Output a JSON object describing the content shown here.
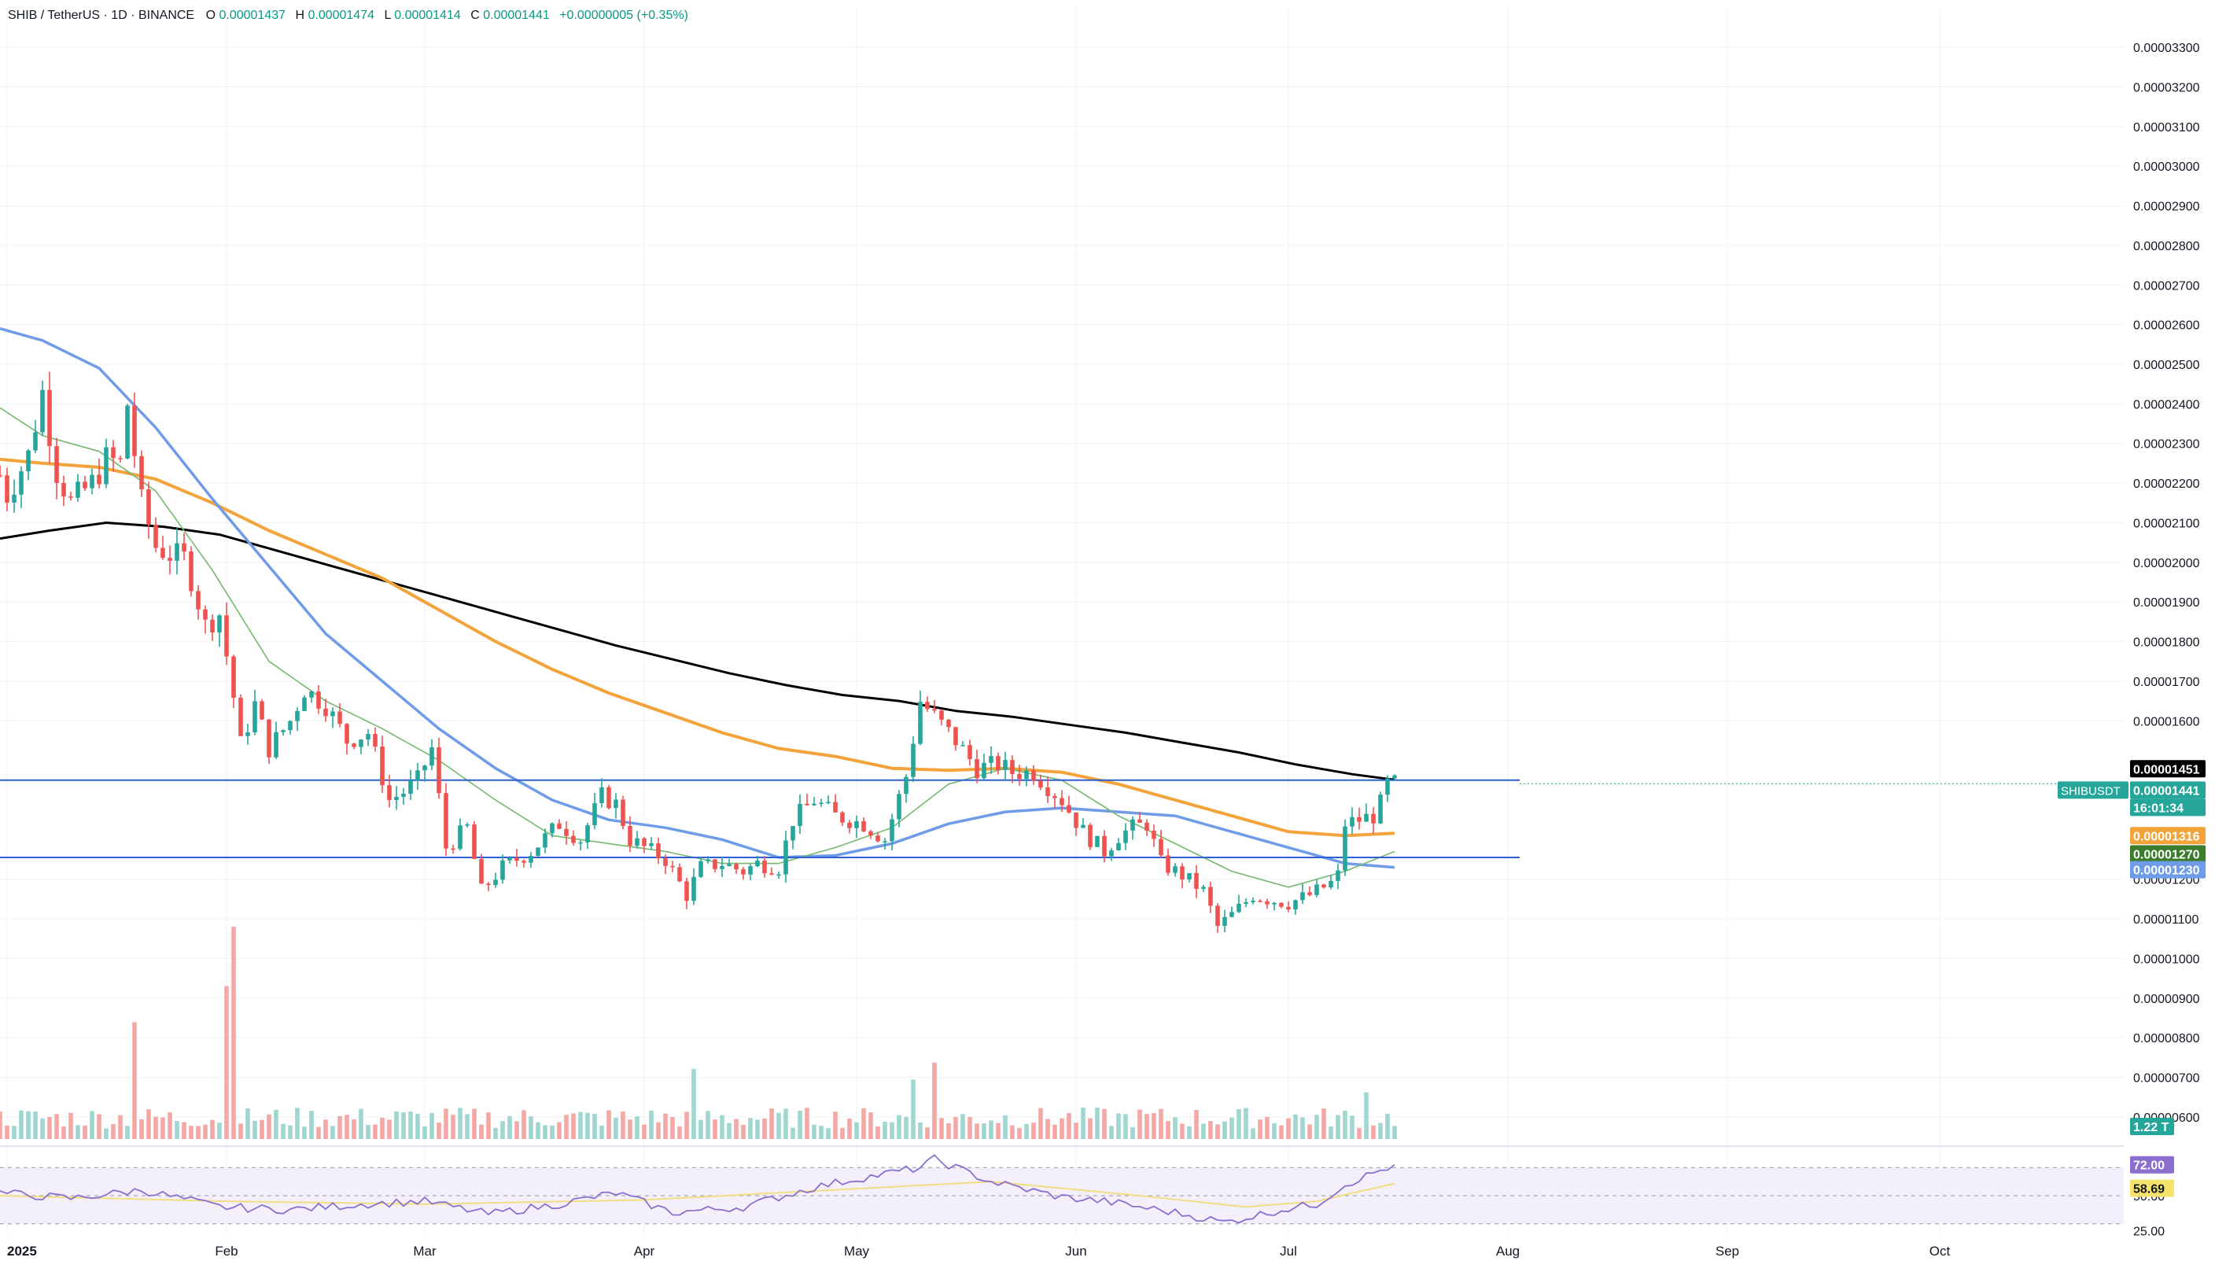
{
  "header": {
    "symbol": "SHIB / TetherUS · 1D · BINANCE",
    "o_label": "O",
    "o_value": "0.00001437",
    "h_label": "H",
    "h_value": "0.00001474",
    "l_label": "L",
    "l_value": "0.00001414",
    "c_label": "C",
    "c_value": "0.00001441",
    "change": "+0.00000005 (+0.35%)"
  },
  "colors": {
    "up": "#26a69a",
    "down": "#ef5350",
    "vol_up": "#9fd6d0",
    "vol_down": "#f4a8a6",
    "ma200": "#000000",
    "ma100": "#f2a33a",
    "ma50": "#6f9ce8",
    "ma20": "#75b96f",
    "hline": "#2f5fd6",
    "rsi": "#8b6fcf",
    "rsi_ma": "#f2dd82",
    "grid": "#f0f1f3",
    "axis_text": "#131722",
    "bg": "#ffffff"
  },
  "chart_data": {
    "type": "candlestick",
    "title": "SHIB / TetherUS · 1D · BINANCE",
    "x_range": [
      "2024-12-31",
      "2025-10-27"
    ],
    "y_range": [
      5.6e-06,
      3.34e-05
    ],
    "y_ticks": [
      "0.00003300",
      "0.00003200",
      "0.00003100",
      "0.00003000",
      "0.00002900",
      "0.00002800",
      "0.00002700",
      "0.00002600",
      "0.00002500",
      "0.00002400",
      "0.00002300",
      "0.00002200",
      "0.00002100",
      "0.00002000",
      "0.00001900",
      "0.00001800",
      "0.00001700",
      "0.00001600",
      "0.00001200",
      "0.00001100",
      "0.00001000",
      "0.00000900",
      "0.00000800",
      "0.00000700",
      "0.00000600"
    ],
    "x_ticks": [
      {
        "label": "2025",
        "date": "2025-01-01"
      },
      {
        "label": "Feb",
        "date": "2025-02-01"
      },
      {
        "label": "Mar",
        "date": "2025-03-01"
      },
      {
        "label": "Apr",
        "date": "2025-04-01"
      },
      {
        "label": "May",
        "date": "2025-05-01"
      },
      {
        "label": "Jun",
        "date": "2025-06-01"
      },
      {
        "label": "Jul",
        "date": "2025-07-01"
      },
      {
        "label": "Aug",
        "date": "2025-08-01"
      },
      {
        "label": "Sep",
        "date": "2025-09-01"
      },
      {
        "label": "Oct",
        "date": "2025-10-01"
      }
    ],
    "price_path": [
      [
        "2024-12-31",
        2.22e-05
      ],
      [
        "2025-01-01",
        2.17e-05
      ],
      [
        "2025-01-04",
        2.27e-05
      ],
      [
        "2025-01-06",
        2.43e-05
      ],
      [
        "2025-01-08",
        2.23e-05
      ],
      [
        "2025-01-10",
        2.15e-05
      ],
      [
        "2025-01-13",
        2.2e-05
      ],
      [
        "2025-01-15",
        2.26e-05
      ],
      [
        "2025-01-17",
        2.25e-05
      ],
      [
        "2025-01-18",
        2.4e-05
      ],
      [
        "2025-01-20",
        2.15e-05
      ],
      [
        "2025-01-22",
        2.04e-05
      ],
      [
        "2025-01-24",
        2.02e-05
      ],
      [
        "2025-01-26",
        2.01e-05
      ],
      [
        "2025-01-27",
        1.96e-05
      ],
      [
        "2025-01-29",
        1.84e-05
      ],
      [
        "2025-01-31",
        1.87e-05
      ],
      [
        "2025-02-02",
        1.66e-05
      ],
      [
        "2025-02-03",
        1.54e-05
      ],
      [
        "2025-02-05",
        1.64e-05
      ],
      [
        "2025-02-07",
        1.53e-05
      ],
      [
        "2025-02-10",
        1.6e-05
      ],
      [
        "2025-02-12",
        1.68e-05
      ],
      [
        "2025-02-15",
        1.64e-05
      ],
      [
        "2025-02-18",
        1.55e-05
      ],
      [
        "2025-02-21",
        1.57e-05
      ],
      [
        "2025-02-24",
        1.4e-05
      ],
      [
        "2025-02-26",
        1.42e-05
      ],
      [
        "2025-02-28",
        1.45e-05
      ],
      [
        "2025-03-02",
        1.53e-05
      ],
      [
        "2025-03-04",
        1.28e-05
      ],
      [
        "2025-03-07",
        1.33e-05
      ],
      [
        "2025-03-09",
        1.17e-05
      ],
      [
        "2025-03-12",
        1.23e-05
      ],
      [
        "2025-03-16",
        1.27e-05
      ],
      [
        "2025-03-20",
        1.34e-05
      ],
      [
        "2025-03-23",
        1.3e-05
      ],
      [
        "2025-03-26",
        1.41e-05
      ],
      [
        "2025-03-28",
        1.39e-05
      ],
      [
        "2025-03-30",
        1.3e-05
      ],
      [
        "2025-04-02",
        1.27e-05
      ],
      [
        "2025-04-04",
        1.25e-05
      ],
      [
        "2025-04-07",
        1.16e-05
      ],
      [
        "2025-04-09",
        1.23e-05
      ],
      [
        "2025-04-12",
        1.24e-05
      ],
      [
        "2025-04-15",
        1.22e-05
      ],
      [
        "2025-04-17",
        1.24e-05
      ],
      [
        "2025-04-20",
        1.23e-05
      ],
      [
        "2025-04-22",
        1.35e-05
      ],
      [
        "2025-04-25",
        1.4e-05
      ],
      [
        "2025-04-28",
        1.36e-05
      ],
      [
        "2025-05-02",
        1.34e-05
      ],
      [
        "2025-05-05",
        1.3e-05
      ],
      [
        "2025-05-08",
        1.46e-05
      ],
      [
        "2025-05-10",
        1.65e-05
      ],
      [
        "2025-05-13",
        1.59e-05
      ],
      [
        "2025-05-15",
        1.55e-05
      ],
      [
        "2025-05-18",
        1.48e-05
      ],
      [
        "2025-05-21",
        1.49e-05
      ],
      [
        "2025-05-23",
        1.47e-05
      ],
      [
        "2025-05-26",
        1.47e-05
      ],
      [
        "2025-05-30",
        1.4e-05
      ],
      [
        "2025-06-02",
        1.32e-05
      ],
      [
        "2025-06-05",
        1.27e-05
      ],
      [
        "2025-06-07",
        1.31e-05
      ],
      [
        "2025-06-09",
        1.33e-05
      ],
      [
        "2025-06-11",
        1.34e-05
      ],
      [
        "2025-06-13",
        1.24e-05
      ],
      [
        "2025-06-16",
        1.21e-05
      ],
      [
        "2025-06-19",
        1.17e-05
      ],
      [
        "2025-06-21",
        1.08e-05
      ],
      [
        "2025-06-23",
        1.11e-05
      ],
      [
        "2025-06-26",
        1.16e-05
      ],
      [
        "2025-06-28",
        1.15e-05
      ],
      [
        "2025-07-01",
        1.14e-05
      ],
      [
        "2025-07-04",
        1.16e-05
      ],
      [
        "2025-07-07",
        1.19e-05
      ],
      [
        "2025-07-08",
        1.21e-05
      ],
      [
        "2025-07-09",
        1.34e-05
      ],
      [
        "2025-07-11",
        1.35e-05
      ],
      [
        "2025-07-13",
        1.36e-05
      ],
      [
        "2025-07-14",
        1.39e-05
      ],
      [
        "2025-07-15",
        1.44e-05
      ],
      [
        "2025-07-16",
        1.441e-05
      ]
    ],
    "series": [
      {
        "key": "ma200",
        "points": [
          [
            "2024-12-31",
            2.06e-05
          ],
          [
            "2025-01-07",
            2.08e-05
          ],
          [
            "2025-01-15",
            2.1e-05
          ],
          [
            "2025-01-23",
            2.09e-05
          ],
          [
            "2025-01-31",
            2.07e-05
          ],
          [
            "2025-02-08",
            2.03e-05
          ],
          [
            "2025-02-16",
            1.99e-05
          ],
          [
            "2025-02-24",
            1.95e-05
          ],
          [
            "2025-03-04",
            1.91e-05
          ],
          [
            "2025-03-12",
            1.87e-05
          ],
          [
            "2025-03-20",
            1.83e-05
          ],
          [
            "2025-03-28",
            1.79e-05
          ],
          [
            "2025-04-05",
            1.755e-05
          ],
          [
            "2025-04-13",
            1.72e-05
          ],
          [
            "2025-04-21",
            1.69e-05
          ],
          [
            "2025-04-29",
            1.665e-05
          ],
          [
            "2025-05-07",
            1.65e-05
          ],
          [
            "2025-05-15",
            1.625e-05
          ],
          [
            "2025-05-23",
            1.61e-05
          ],
          [
            "2025-05-31",
            1.59e-05
          ],
          [
            "2025-06-08",
            1.57e-05
          ],
          [
            "2025-06-16",
            1.545e-05
          ],
          [
            "2025-06-24",
            1.52e-05
          ],
          [
            "2025-07-02",
            1.49e-05
          ],
          [
            "2025-07-10",
            1.465e-05
          ],
          [
            "2025-07-16",
            1.451e-05
          ]
        ]
      },
      {
        "key": "ma100",
        "points": [
          [
            "2024-12-31",
            2.26e-05
          ],
          [
            "2025-01-06",
            2.25e-05
          ],
          [
            "2025-01-14",
            2.24e-05
          ],
          [
            "2025-01-22",
            2.21e-05
          ],
          [
            "2025-01-30",
            2.15e-05
          ],
          [
            "2025-02-07",
            2.08e-05
          ],
          [
            "2025-02-15",
            2.02e-05
          ],
          [
            "2025-02-23",
            1.96e-05
          ],
          [
            "2025-03-03",
            1.88e-05
          ],
          [
            "2025-03-11",
            1.8e-05
          ],
          [
            "2025-03-19",
            1.73e-05
          ],
          [
            "2025-03-27",
            1.67e-05
          ],
          [
            "2025-04-04",
            1.62e-05
          ],
          [
            "2025-04-12",
            1.57e-05
          ],
          [
            "2025-04-20",
            1.53e-05
          ],
          [
            "2025-04-28",
            1.51e-05
          ],
          [
            "2025-05-06",
            1.48e-05
          ],
          [
            "2025-05-14",
            1.475e-05
          ],
          [
            "2025-05-22",
            1.48e-05
          ],
          [
            "2025-05-30",
            1.47e-05
          ],
          [
            "2025-06-07",
            1.44e-05
          ],
          [
            "2025-06-15",
            1.4e-05
          ],
          [
            "2025-06-23",
            1.36e-05
          ],
          [
            "2025-07-01",
            1.32e-05
          ],
          [
            "2025-07-09",
            1.31e-05
          ],
          [
            "2025-07-16",
            1.316e-05
          ]
        ]
      },
      {
        "key": "ma50",
        "points": [
          [
            "2024-12-31",
            2.59e-05
          ],
          [
            "2025-01-06",
            2.56e-05
          ],
          [
            "2025-01-14",
            2.49e-05
          ],
          [
            "2025-01-22",
            2.34e-05
          ],
          [
            "2025-01-30",
            2.16e-05
          ],
          [
            "2025-02-07",
            1.99e-05
          ],
          [
            "2025-02-15",
            1.82e-05
          ],
          [
            "2025-02-23",
            1.7e-05
          ],
          [
            "2025-03-03",
            1.58e-05
          ],
          [
            "2025-03-11",
            1.48e-05
          ],
          [
            "2025-03-19",
            1.4e-05
          ],
          [
            "2025-03-27",
            1.35e-05
          ],
          [
            "2025-04-04",
            1.33e-05
          ],
          [
            "2025-04-12",
            1.3e-05
          ],
          [
            "2025-04-20",
            1.255e-05
          ],
          [
            "2025-04-28",
            1.26e-05
          ],
          [
            "2025-05-06",
            1.29e-05
          ],
          [
            "2025-05-14",
            1.34e-05
          ],
          [
            "2025-05-22",
            1.37e-05
          ],
          [
            "2025-05-30",
            1.38e-05
          ],
          [
            "2025-06-07",
            1.37e-05
          ],
          [
            "2025-06-15",
            1.36e-05
          ],
          [
            "2025-06-23",
            1.32e-05
          ],
          [
            "2025-07-01",
            1.28e-05
          ],
          [
            "2025-07-09",
            1.24e-05
          ],
          [
            "2025-07-16",
            1.23e-05
          ]
        ]
      },
      {
        "key": "ma20",
        "points": [
          [
            "2024-12-31",
            2.39e-05
          ],
          [
            "2025-01-06",
            2.32e-05
          ],
          [
            "2025-01-14",
            2.28e-05
          ],
          [
            "2025-01-22",
            2.18e-05
          ],
          [
            "2025-01-30",
            1.98e-05
          ],
          [
            "2025-02-07",
            1.75e-05
          ],
          [
            "2025-02-15",
            1.65e-05
          ],
          [
            "2025-02-23",
            1.58e-05
          ],
          [
            "2025-03-03",
            1.5e-05
          ],
          [
            "2025-03-11",
            1.4e-05
          ],
          [
            "2025-03-19",
            1.31e-05
          ],
          [
            "2025-03-27",
            1.29e-05
          ],
          [
            "2025-04-04",
            1.27e-05
          ],
          [
            "2025-04-12",
            1.24e-05
          ],
          [
            "2025-04-20",
            1.24e-05
          ],
          [
            "2025-04-28",
            1.28e-05
          ],
          [
            "2025-05-06",
            1.33e-05
          ],
          [
            "2025-05-14",
            1.44e-05
          ],
          [
            "2025-05-22",
            1.48e-05
          ],
          [
            "2025-05-30",
            1.45e-05
          ],
          [
            "2025-06-07",
            1.36e-05
          ],
          [
            "2025-06-15",
            1.29e-05
          ],
          [
            "2025-06-23",
            1.22e-05
          ],
          [
            "2025-07-01",
            1.18e-05
          ],
          [
            "2025-07-09",
            1.22e-05
          ],
          [
            "2025-07-16",
            1.27e-05
          ]
        ]
      }
    ],
    "hlines": [
      1.45e-05,
      1.255e-05
    ],
    "volume": {
      "label": "1.22 T",
      "peaks": [
        [
          "2025-01-19",
          0.55
        ],
        [
          "2025-02-02",
          1.0
        ],
        [
          "2025-02-01",
          0.72
        ],
        [
          "2025-04-08",
          0.33
        ],
        [
          "2025-05-09",
          0.28
        ],
        [
          "2025-05-12",
          0.36
        ],
        [
          "2025-07-12",
          0.22
        ]
      ],
      "base": 0.1
    },
    "rsi": {
      "levels": [
        "72.00",
        "58.69",
        "50.00",
        "25.00"
      ],
      "current": 72.0,
      "ma_current": 58.69,
      "range": [
        22,
        78
      ],
      "path": [
        [
          "2024-12-31",
          52
        ],
        [
          "2025-01-10",
          48
        ],
        [
          "2025-01-20",
          54
        ],
        [
          "2025-01-31",
          42
        ],
        [
          "2025-02-10",
          40
        ],
        [
          "2025-02-20",
          44
        ],
        [
          "2025-03-01",
          46
        ],
        [
          "2025-03-10",
          37
        ],
        [
          "2025-03-20",
          44
        ],
        [
          "2025-03-28",
          52
        ],
        [
          "2025-04-05",
          38
        ],
        [
          "2025-04-15",
          42
        ],
        [
          "2025-04-25",
          56
        ],
        [
          "2025-05-01",
          62
        ],
        [
          "2025-05-10",
          70
        ],
        [
          "2025-05-12",
          76
        ],
        [
          "2025-05-20",
          60
        ],
        [
          "2025-05-30",
          49
        ],
        [
          "2025-06-05",
          46
        ],
        [
          "2025-06-15",
          38
        ],
        [
          "2025-06-22",
          31
        ],
        [
          "2025-06-30",
          40
        ],
        [
          "2025-07-05",
          44
        ],
        [
          "2025-07-09",
          58
        ],
        [
          "2025-07-14",
          68
        ],
        [
          "2025-07-16",
          72
        ]
      ],
      "ma_path": [
        [
          "2024-12-31",
          50
        ],
        [
          "2025-02-01",
          46
        ],
        [
          "2025-03-01",
          44
        ],
        [
          "2025-04-01",
          47
        ],
        [
          "2025-05-01",
          55
        ],
        [
          "2025-05-20",
          60
        ],
        [
          "2025-06-10",
          50
        ],
        [
          "2025-06-25",
          42
        ],
        [
          "2025-07-05",
          46
        ],
        [
          "2025-07-16",
          58.69
        ]
      ]
    }
  },
  "price_tags": {
    "ma200": "0.00001451",
    "symbol": "SHIBUSDT",
    "last": "0.00001441",
    "countdown": "16:01:34",
    "ma100": "0.00001316",
    "ma20": "0.00001270",
    "ma50": "0.00001230"
  }
}
